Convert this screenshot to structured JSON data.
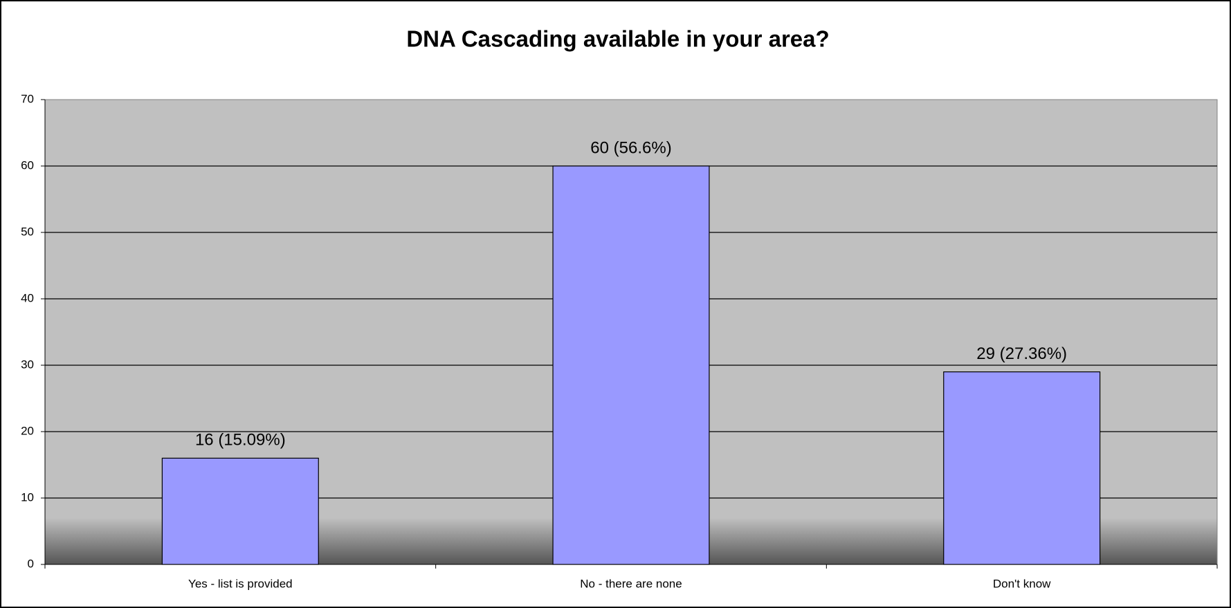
{
  "chart_data": {
    "type": "bar",
    "title": "DNA Cascading available in your area?",
    "categories": [
      "Yes - list is provided",
      "No - there are none",
      "Don't know"
    ],
    "values": [
      16,
      60,
      29
    ],
    "value_labels": [
      "16 (15.09%)",
      "60 (56.6%)",
      "29 (27.36%)"
    ],
    "color": "#9999ff",
    "ylim": [
      0,
      70
    ],
    "yticks": [
      0,
      10,
      20,
      30,
      40,
      50,
      60,
      70
    ],
    "grid": true
  }
}
